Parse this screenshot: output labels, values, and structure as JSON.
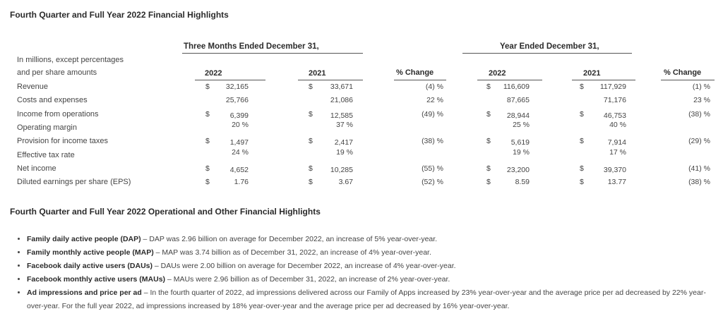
{
  "title": "Fourth Quarter and Full Year 2022 Financial Highlights",
  "table": {
    "group_three_months": "Three Months Ended December 31,",
    "group_year": "Year Ended December 31,",
    "row_header_line1": "In millions, except percentages",
    "row_header_line2": "and per share amounts",
    "columns": [
      "2022",
      "2021",
      "% Change",
      "2022",
      "2021",
      "% Change"
    ],
    "rows": [
      {
        "label": "Revenue",
        "d1": "$",
        "v1": "32,165",
        "d2": "$",
        "v2": "33,671",
        "c1": "(4) %",
        "d3": "$",
        "v3": "116,609",
        "d4": "$",
        "v4": "117,929",
        "c2": "(1) %"
      },
      {
        "label": "Costs and expenses",
        "d1": "",
        "v1": "25,766",
        "d2": "",
        "v2": "21,086",
        "c1": "22 %",
        "d3": "",
        "v3": "87,665",
        "d4": "",
        "v4": "71,176",
        "c2": "23 %"
      },
      {
        "label": "Income from operations",
        "d1": "$",
        "v1": "6,399",
        "d2": "$",
        "v2": "12,585",
        "c1": "(49) %",
        "d3": "$",
        "v3": "28,944",
        "d4": "$",
        "v4": "46,753",
        "c2": "(38) %"
      },
      {
        "label": "Operating margin",
        "d1": "",
        "v1": "20 %",
        "d2": "",
        "v2": "37 %",
        "c1": "",
        "d3": "",
        "v3": "25 %",
        "d4": "",
        "v4": "40 %",
        "c2": ""
      },
      {
        "label": "Provision for income taxes",
        "d1": "$",
        "v1": "1,497",
        "d2": "$",
        "v2": "2,417",
        "c1": "(38) %",
        "d3": "$",
        "v3": "5,619",
        "d4": "$",
        "v4": "7,914",
        "c2": "(29) %"
      },
      {
        "label": "Effective tax rate",
        "d1": "",
        "v1": "24 %",
        "d2": "",
        "v2": "19 %",
        "c1": "",
        "d3": "",
        "v3": "19 %",
        "d4": "",
        "v4": "17 %",
        "c2": ""
      },
      {
        "label": "Net income",
        "d1": "$",
        "v1": "4,652",
        "d2": "$",
        "v2": "10,285",
        "c1": "(55) %",
        "d3": "$",
        "v3": "23,200",
        "d4": "$",
        "v4": "39,370",
        "c2": "(41) %"
      },
      {
        "label": "Diluted earnings per share (EPS)",
        "d1": "$",
        "v1": "1.76",
        "d2": "$",
        "v2": "3.67",
        "c1": "(52) %",
        "d3": "$",
        "v3": "8.59",
        "d4": "$",
        "v4": "13.77",
        "c2": "(38) %"
      }
    ]
  },
  "section2_title": "Fourth Quarter and Full Year 2022 Operational and Other Financial Highlights",
  "bullets": [
    {
      "term": "Family daily active people (DAP)",
      "text": " – DAP was 2.96 billion on average for December 2022, an increase of 5% year-over-year."
    },
    {
      "term": "Family monthly active people (MAP)",
      "text": " – MAP was 3.74 billion as of December 31, 2022, an increase of 4% year-over-year."
    },
    {
      "term": "Facebook daily active users (DAUs)",
      "text": " – DAUs were 2.00 billion on average for December 2022, an increase of 4% year-over-year."
    },
    {
      "term": "Facebook monthly active users (MAUs)",
      "text": " – MAUs were 2.96 billion as of December 31, 2022, an increase of 2% year-over-year."
    },
    {
      "term": "Ad impressions and price per ad",
      "text": " – In the fourth quarter of 2022, ad impressions delivered across our Family of Apps increased by 23% year-over-year and the average price per ad decreased by 22% year-over-year. For the full year 2022, ad impressions increased by 18% year-over-year and the average price per ad decreased by 16% year-over-year."
    }
  ]
}
